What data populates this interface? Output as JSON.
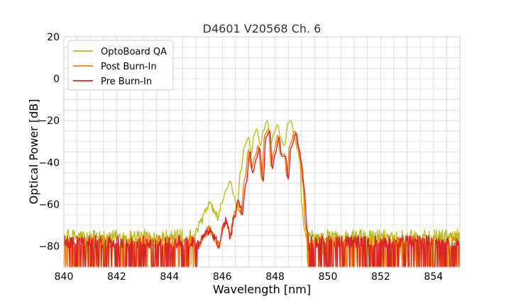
{
  "chart_data": {
    "type": "line",
    "title": "D4601 V20568 Ch. 6",
    "xlabel": "Wavelength [nm]",
    "ylabel": "Optical Power [dB]",
    "xlim": [
      840,
      855
    ],
    "ylim": [
      -90,
      20
    ],
    "xticks": [
      840,
      842,
      844,
      846,
      848,
      850,
      852,
      854
    ],
    "yticks": [
      20,
      0,
      -20,
      -40,
      -60,
      -80
    ],
    "grid": true,
    "legend_position": "top-left",
    "series": [
      {
        "name": "OptoBoard QA",
        "color": "#bcbd22",
        "noise_floor": -77,
        "points": [
          [
            845.0,
            -73
          ],
          [
            845.2,
            -68
          ],
          [
            845.4,
            -63
          ],
          [
            845.55,
            -59
          ],
          [
            845.7,
            -64
          ],
          [
            845.85,
            -66
          ],
          [
            846.0,
            -59
          ],
          [
            846.15,
            -53
          ],
          [
            846.3,
            -49
          ],
          [
            846.45,
            -56
          ],
          [
            846.55,
            -62
          ],
          [
            846.7,
            -44
          ],
          [
            846.85,
            -32
          ],
          [
            847.0,
            -28
          ],
          [
            847.1,
            -36
          ],
          [
            847.2,
            -27
          ],
          [
            847.3,
            -24
          ],
          [
            847.45,
            -32
          ],
          [
            847.55,
            -25
          ],
          [
            847.7,
            -20
          ],
          [
            847.85,
            -31
          ],
          [
            847.95,
            -26
          ],
          [
            848.1,
            -22
          ],
          [
            848.2,
            -28
          ],
          [
            848.35,
            -32
          ],
          [
            848.5,
            -21
          ],
          [
            848.6,
            -20
          ],
          [
            848.75,
            -29
          ],
          [
            848.85,
            -34
          ],
          [
            848.95,
            -40
          ],
          [
            849.0,
            -60
          ],
          [
            849.1,
            -72
          ],
          [
            849.2,
            -75
          ]
        ]
      },
      {
        "name": "Post Burn-In",
        "color": "#ff7f0e",
        "noise_floor": -83,
        "points": [
          [
            845.1,
            -80
          ],
          [
            845.3,
            -75
          ],
          [
            845.5,
            -72
          ],
          [
            845.7,
            -76
          ],
          [
            845.9,
            -80
          ],
          [
            846.0,
            -72
          ],
          [
            846.15,
            -68
          ],
          [
            846.3,
            -75
          ],
          [
            846.4,
            -68
          ],
          [
            846.55,
            -60
          ],
          [
            846.7,
            -64
          ],
          [
            846.85,
            -48
          ],
          [
            847.0,
            -34
          ],
          [
            847.1,
            -43
          ],
          [
            847.25,
            -37
          ],
          [
            847.35,
            -32
          ],
          [
            847.5,
            -48
          ],
          [
            847.6,
            -27
          ],
          [
            847.75,
            -24
          ],
          [
            847.85,
            -42
          ],
          [
            847.95,
            -35
          ],
          [
            848.1,
            -27
          ],
          [
            848.2,
            -36
          ],
          [
            848.35,
            -36
          ],
          [
            848.45,
            -47
          ],
          [
            848.55,
            -32
          ],
          [
            848.75,
            -25
          ],
          [
            848.85,
            -32
          ],
          [
            848.95,
            -38
          ],
          [
            849.05,
            -50
          ],
          [
            849.15,
            -70
          ],
          [
            849.25,
            -82
          ]
        ]
      },
      {
        "name": "Pre Burn-In",
        "color": "#d62728",
        "noise_floor": -83,
        "points": [
          [
            845.1,
            -80
          ],
          [
            845.3,
            -75
          ],
          [
            845.5,
            -73
          ],
          [
            845.7,
            -76
          ],
          [
            845.9,
            -80
          ],
          [
            846.0,
            -72
          ],
          [
            846.15,
            -68
          ],
          [
            846.3,
            -76
          ],
          [
            846.45,
            -67
          ],
          [
            846.6,
            -58
          ],
          [
            846.75,
            -64
          ],
          [
            846.9,
            -50
          ],
          [
            847.05,
            -35
          ],
          [
            847.15,
            -45
          ],
          [
            847.3,
            -38
          ],
          [
            847.4,
            -33
          ],
          [
            847.55,
            -49
          ],
          [
            847.65,
            -28
          ],
          [
            847.8,
            -25
          ],
          [
            847.9,
            -43
          ],
          [
            848.0,
            -36
          ],
          [
            848.15,
            -28
          ],
          [
            848.25,
            -37
          ],
          [
            848.4,
            -37
          ],
          [
            848.5,
            -48
          ],
          [
            848.6,
            -33
          ],
          [
            848.8,
            -26
          ],
          [
            848.9,
            -33
          ],
          [
            849.0,
            -40
          ],
          [
            849.1,
            -52
          ],
          [
            849.2,
            -71
          ],
          [
            849.3,
            -82
          ]
        ]
      }
    ]
  }
}
